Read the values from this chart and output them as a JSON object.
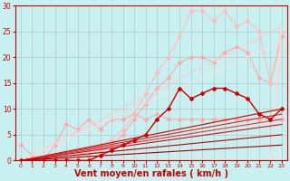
{
  "background_color": "#c8f0f0",
  "grid_color": "#b0c8c8",
  "xlabel": "Vent moyen/en rafales ( km/h )",
  "xlabel_color": "#cc0000",
  "xlabel_fontsize": 7,
  "tick_color": "#cc0000",
  "xlim": [
    -0.5,
    23.5
  ],
  "ylim": [
    0,
    30
  ],
  "xticks": [
    0,
    1,
    2,
    3,
    4,
    5,
    6,
    7,
    8,
    9,
    10,
    11,
    12,
    13,
    14,
    15,
    16,
    17,
    18,
    19,
    20,
    21,
    22,
    23
  ],
  "yticks": [
    0,
    5,
    10,
    15,
    20,
    25,
    30
  ],
  "series": [
    {
      "x": [
        0,
        1,
        2,
        3,
        4,
        5,
        6,
        7,
        8,
        9,
        10,
        11,
        12,
        13,
        14,
        15,
        16,
        17,
        18,
        19,
        20,
        21,
        22,
        23
      ],
      "y": [
        3,
        1,
        0,
        3,
        7,
        6,
        8,
        6,
        8,
        8,
        9,
        8,
        9,
        8,
        8,
        8,
        8,
        8,
        8,
        8,
        8,
        8,
        8,
        8
      ],
      "color": "#ffaaaa",
      "linewidth": 0.8,
      "marker": "D",
      "markersize": 2.0
    },
    {
      "x": [
        0,
        1,
        2,
        3,
        4,
        5,
        6,
        7,
        8,
        9,
        10,
        11,
        12,
        13,
        14,
        15,
        16,
        17,
        18,
        19,
        20,
        21,
        22,
        23
      ],
      "y": [
        0,
        0,
        0,
        0,
        0,
        1,
        1,
        2,
        3,
        5,
        8,
        11,
        14,
        16,
        19,
        20,
        20,
        19,
        21,
        22,
        21,
        16,
        15,
        24
      ],
      "color": "#ffaaaa",
      "linewidth": 0.8,
      "marker": "D",
      "markersize": 2.0
    },
    {
      "x": [
        0,
        1,
        2,
        3,
        4,
        5,
        6,
        7,
        8,
        9,
        10,
        11,
        12,
        13,
        14,
        15,
        16,
        17,
        18,
        19,
        20,
        21,
        22,
        23
      ],
      "y": [
        0,
        0,
        0,
        0,
        0,
        1,
        2,
        3,
        4,
        6,
        9,
        13,
        17,
        20,
        24,
        29,
        29,
        27,
        29,
        26,
        27,
        25,
        15,
        25
      ],
      "color": "#ffbbbb",
      "linewidth": 0.8,
      "marker": "D",
      "markersize": 2.0
    },
    {
      "x": [
        0,
        1,
        2,
        3,
        4,
        5,
        6,
        7,
        8,
        9,
        10,
        11,
        12,
        13,
        14,
        15,
        16,
        17,
        18,
        19,
        20,
        21,
        22,
        23
      ],
      "y": [
        0,
        0,
        0,
        0,
        0,
        0,
        0,
        0,
        0,
        0,
        0,
        0,
        0,
        0,
        0,
        0,
        0,
        0,
        0,
        0,
        0,
        0,
        0,
        23
      ],
      "color": "#ffcccc",
      "linewidth": 0.8,
      "marker": null,
      "markersize": 0
    },
    {
      "x": [
        0,
        1,
        2,
        3,
        4,
        5,
        6,
        7,
        8,
        9,
        10,
        11,
        12,
        13,
        14,
        15,
        16,
        17,
        18,
        19,
        20,
        21,
        22,
        23
      ],
      "y": [
        0,
        0,
        0,
        0,
        0,
        0,
        0,
        0,
        0,
        0,
        0,
        0,
        0,
        0,
        0,
        0,
        0,
        0,
        0,
        0,
        0,
        0,
        0,
        26
      ],
      "color": "#ffdddd",
      "linewidth": 0.8,
      "marker": null,
      "markersize": 0
    },
    {
      "x": [
        0,
        23
      ],
      "y": [
        0,
        26
      ],
      "color": "#ffcccc",
      "linewidth": 0.8,
      "marker": null,
      "markersize": 0
    },
    {
      "x": [
        0,
        23
      ],
      "y": [
        0,
        23
      ],
      "color": "#ffdddd",
      "linewidth": 0.8,
      "marker": null,
      "markersize": 0
    },
    {
      "x": [
        0,
        23
      ],
      "y": [
        0,
        10
      ],
      "color": "#cc0000",
      "linewidth": 0.8,
      "marker": null,
      "markersize": 0
    },
    {
      "x": [
        0,
        23
      ],
      "y": [
        0,
        9
      ],
      "color": "#dd2222",
      "linewidth": 0.8,
      "marker": null,
      "markersize": 0
    },
    {
      "x": [
        0,
        23
      ],
      "y": [
        0,
        8
      ],
      "color": "#ee3333",
      "linewidth": 0.8,
      "marker": null,
      "markersize": 0
    },
    {
      "x": [
        0,
        23
      ],
      "y": [
        0,
        7
      ],
      "color": "#cc1111",
      "linewidth": 0.8,
      "marker": null,
      "markersize": 0
    },
    {
      "x": [
        0,
        23
      ],
      "y": [
        0,
        5
      ],
      "color": "#bb0000",
      "linewidth": 0.8,
      "marker": null,
      "markersize": 0
    },
    {
      "x": [
        0,
        23
      ],
      "y": [
        0,
        3
      ],
      "color": "#aa0000",
      "linewidth": 0.8,
      "marker": null,
      "markersize": 0
    },
    {
      "x": [
        0,
        1,
        2,
        3,
        4,
        5,
        6,
        7,
        8,
        9,
        10,
        11,
        12,
        13,
        14,
        15,
        16,
        17,
        18,
        19,
        20,
        21,
        22,
        23
      ],
      "y": [
        0,
        0,
        0,
        0,
        0,
        0,
        0,
        1,
        2,
        3,
        4,
        5,
        8,
        10,
        14,
        12,
        13,
        14,
        14,
        13,
        12,
        9,
        8,
        10
      ],
      "color": "#cc0000",
      "linewidth": 1.0,
      "marker": "D",
      "markersize": 2.0
    }
  ]
}
